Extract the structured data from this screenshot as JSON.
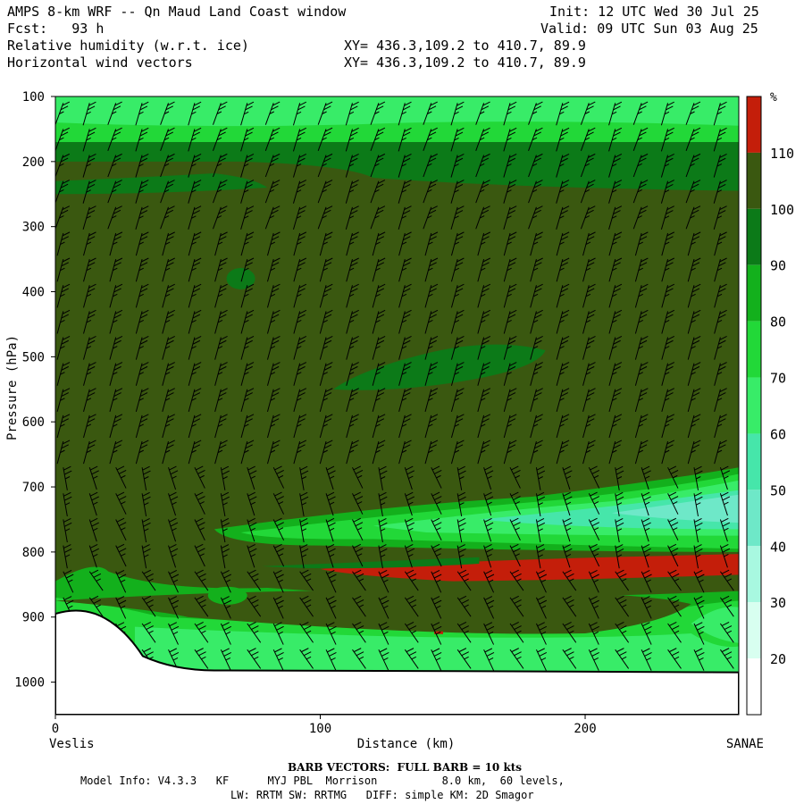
{
  "header": {
    "line1_left": "AMPS 8-km WRF -- Qn Maud Land Coast window",
    "line1_right": "Init: 12 UTC Wed 30 Jul 25",
    "line2_left": "Fcst:   93 h",
    "line2_right": "Valid: 09 UTC Sun 03 Aug 25",
    "line3_left": "Relative humidity (w.r.t. ice)",
    "line3_right": "XY= 436.3,109.2 to 410.7, 89.9",
    "line4_left": "Horizontal wind vectors",
    "line4_right": "XY= 436.3,109.2 to 410.7, 89.9"
  },
  "footer": {
    "barb_note": "BARB VECTORS:  FULL BARB = 10 kts",
    "model_line1": "Model Info: V4.3.3   KF      MYJ PBL  Morrison          8.0 km,  60 levels,",
    "model_line2": "LW: RRTM SW: RRTMG   DIFF: simple KM: 2D Smagor"
  },
  "chart_data": {
    "type": "heatmap",
    "title": "Relative humidity (w.r.t. ice)",
    "xlabel": "Distance (km)",
    "ylabel": "Pressure (hPa)",
    "xlim": [
      0,
      258
    ],
    "ylim": [
      1050,
      100
    ],
    "x_ticks": [
      0,
      100,
      200
    ],
    "y_ticks": [
      100,
      200,
      300,
      400,
      500,
      600,
      700,
      800,
      900,
      1000
    ],
    "x_endpoints": {
      "left": "Veslis",
      "right": "SANAE"
    },
    "colorbar": {
      "unit": "%",
      "labels": [
        20,
        30,
        40,
        50,
        60,
        70,
        80,
        90,
        100,
        110
      ],
      "colors": [
        "#ffffff",
        "#d8fff0",
        "#a8f8e0",
        "#6ee8c8",
        "#46e6aa",
        "#38ec68",
        "#22d838",
        "#13b01c",
        "#0c7a18",
        "#3a5810",
        "#c41e0a"
      ]
    },
    "fields": {
      "background": "#3a5810",
      "upper_band_top": {
        "p_range": [
          100,
          175
        ],
        "color": "#38ec68"
      },
      "upper_band_mid": {
        "p_range": [
          140,
          175
        ],
        "color": "#22d838"
      },
      "upper_dark_band": {
        "p_range": [
          175,
          240
        ],
        "color": "#0c7a18"
      },
      "patches_dark_green": [
        {
          "x": 10,
          "p": 240,
          "w": 8,
          "h": 10
        },
        {
          "x": 55,
          "p": 228,
          "w": 30,
          "h": 20
        },
        {
          "x": 70,
          "p": 380,
          "w": 8,
          "h": 18
        },
        {
          "x": 162,
          "p": 508,
          "w": 40,
          "h": 45
        },
        {
          "x": 240,
          "p": 710,
          "w": 22,
          "h": 30
        }
      ],
      "moist_layer_p": [
        660,
        800
      ],
      "red_band_p": [
        815,
        840
      ],
      "terrain_p_left": 895,
      "terrain_p_right": 985
    },
    "wind_note": "Horizontal wind barbs (kts)"
  }
}
